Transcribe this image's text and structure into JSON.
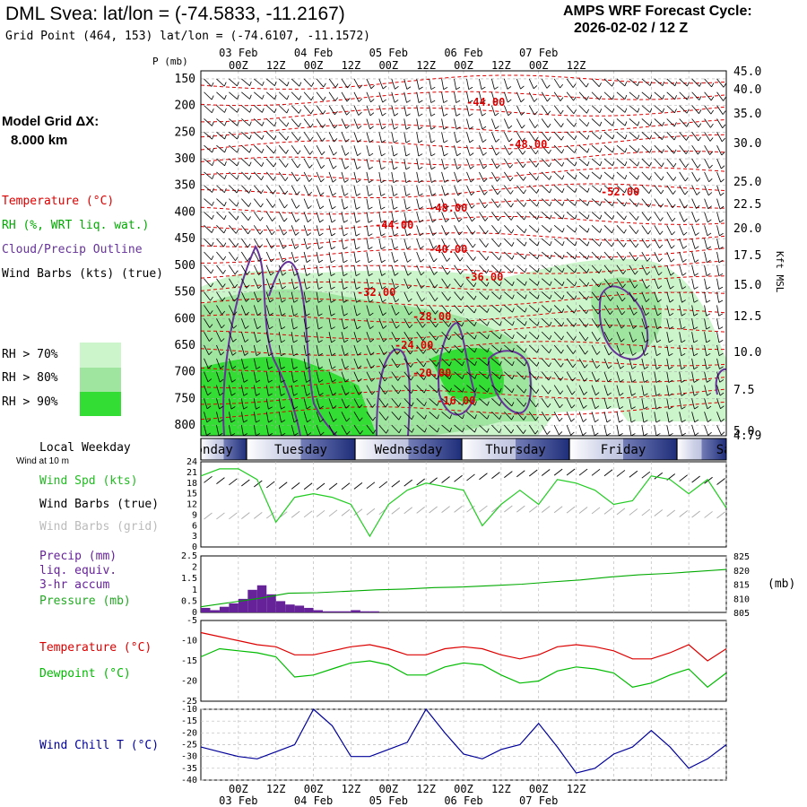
{
  "header": {
    "title": "DML Svea:  lat/lon = (-74.5833, -11.2167)",
    "grid_point": "Grid Point (464, 153) lat/lon = (-74.6107, -11.1572)",
    "forecast_label": "AMPS WRF Forecast Cycle:",
    "forecast_cycle": "2026-02-02 / 12  Z"
  },
  "left_labels": {
    "model_grid": "Model Grid ΔX:",
    "model_dx": "8.000 km",
    "temperature": "Temperature (°C)",
    "rh": "RH (%, WRT liq. wat.)",
    "cloud": "Cloud/Precip Outline",
    "wind_barbs": "Wind Barbs (kts) (true)",
    "rh70": "RH > 70%",
    "rh80": "RH > 80%",
    "rh90": "RH > 90%",
    "local_weekday": "Local Weekday",
    "wind_10m": "Wind at 10 m",
    "wind_spd": "Wind Spd (kts)",
    "wind_barbs_true": "Wind Barbs (true)",
    "wind_barbs_grid": "Wind Barbs (grid)",
    "precip": "Precip (mm)",
    "liq_equiv": "liq. equiv.",
    "accum": "3-hr accum",
    "pressure": "Pressure (mb)",
    "temperature2": "Temperature (°C)",
    "dewpoint": "Dewpoint (°C)",
    "wind_chill": "Wind Chill T (°C)",
    "p_mb": "P (mb)",
    "kft_msl": "Kft MSL",
    "pressure_unit": "(mb)"
  },
  "colors": {
    "temperature": "#dd0000",
    "rh": "#00aa00",
    "cloud": "#663399",
    "dewpoint": "#00bb00",
    "wind_spd": "#22cc22",
    "wind_chill": "#000099",
    "rh70": "#ccf5cc",
    "rh80": "#9fe59f",
    "rh90": "#33dd33",
    "precip": "#662299"
  },
  "chart_data": [
    {
      "type": "heatmap",
      "panel": "cross-section",
      "time_hours": [
        0,
        168
      ],
      "ylim_mb": [
        820,
        135
      ],
      "pressure_ticks": [
        150,
        200,
        250,
        300,
        350,
        400,
        450,
        500,
        550,
        600,
        650,
        700,
        750,
        800
      ],
      "height_ticks_kft": [
        "45.0",
        "40.0",
        "35.0",
        "30.0",
        "25.0",
        "22.5",
        "20.0",
        "17.5",
        "15.0",
        "12.5",
        "10.0",
        "7.5",
        "5.0",
        "4.79"
      ],
      "top_time_labels": [
        "00Z",
        "12Z",
        "00Z",
        "12Z",
        "00Z",
        "12Z",
        "00Z",
        "12Z",
        "00Z",
        "12Z"
      ],
      "date_labels": [
        "03 Feb",
        "04 Feb",
        "05 Feb",
        "06 Feb",
        "07 Feb"
      ],
      "temperature_labels": [
        "-44.00",
        "-48.00",
        "-52.00",
        "-48.00",
        "-44.00",
        "-40.00",
        "-36.00",
        "-32.00",
        "-28.00",
        "-24.00",
        "-20.00",
        "-16.00"
      ]
    },
    {
      "type": "table",
      "panel": "weekday-bar",
      "days": [
        "Monday",
        "Tuesday",
        "Wednesday",
        "Thursday",
        "Friday",
        "Saturday"
      ]
    },
    {
      "type": "line",
      "panel": "wind",
      "ylim": [
        0,
        24
      ],
      "yticks": [
        0,
        3,
        6,
        9,
        12,
        15,
        18,
        21,
        24
      ],
      "x_hours": [
        0,
        6,
        12,
        18,
        24,
        30,
        36,
        42,
        48,
        54,
        60,
        66,
        72,
        78,
        84,
        90,
        96,
        102,
        108,
        114,
        120,
        126,
        132,
        138,
        144,
        150,
        156,
        162,
        168
      ],
      "wind_speed_kts": [
        20,
        22,
        22,
        19,
        7,
        14,
        15,
        14,
        12,
        3,
        12,
        16,
        18,
        17,
        16,
        6,
        12,
        16,
        12,
        19,
        18,
        16,
        12,
        13,
        20,
        19,
        15,
        19,
        11
      ]
    },
    {
      "type": "bar",
      "panel": "precip",
      "ylim": [
        0,
        2.5
      ],
      "yticks": [
        0,
        0.5,
        1,
        1.5,
        2,
        2.5
      ],
      "x_hours": [
        0,
        3,
        6,
        9,
        12,
        15,
        18,
        21,
        24,
        27,
        30,
        33,
        36,
        39,
        42,
        45,
        48,
        51,
        54
      ],
      "precip_mm": [
        0.2,
        0.1,
        0.25,
        0.4,
        0.6,
        1.0,
        1.2,
        0.8,
        0.5,
        0.35,
        0.3,
        0.2,
        0.1,
        0.05,
        0.05,
        0.05,
        0.1,
        0.05,
        0.05
      ],
      "pressure_ylim": [
        805,
        825
      ],
      "pressure_ticks": [
        805,
        810,
        815,
        820,
        825
      ],
      "pressure_mb": [
        807,
        808.5,
        810,
        811.8,
        812,
        812.5,
        813,
        813.3,
        813.8,
        814,
        814.5,
        815,
        815.8,
        816.5,
        817.5,
        818.3,
        818.8,
        819.5,
        820.2
      ]
    },
    {
      "type": "line",
      "panel": "temperature",
      "ylim": [
        -25,
        -5
      ],
      "yticks": [
        -5,
        -10,
        -15,
        -20,
        -25
      ],
      "x_hours": [
        0,
        6,
        12,
        18,
        24,
        30,
        36,
        42,
        48,
        54,
        60,
        66,
        72,
        78,
        84,
        90,
        96,
        102,
        108,
        114,
        120,
        126,
        132,
        138,
        144,
        150,
        156,
        162,
        168
      ],
      "temperature_c": [
        -8,
        -9,
        -10,
        -11,
        -11.5,
        -13.5,
        -13.5,
        -12.5,
        -11.5,
        -11,
        -12,
        -13.5,
        -13.5,
        -12,
        -11.5,
        -12,
        -13.5,
        -14.5,
        -13.5,
        -11.5,
        -11,
        -11.5,
        -12.5,
        -14.5,
        -14.5,
        -13,
        -11,
        -15,
        -12
      ],
      "dewpoint_c": [
        -14,
        -12,
        -12.5,
        -13,
        -14,
        -19,
        -18.5,
        -17,
        -15.5,
        -15,
        -16,
        -18.5,
        -18.5,
        -16.5,
        -15.5,
        -16,
        -18.5,
        -20.5,
        -20,
        -17.5,
        -16.5,
        -17,
        -18,
        -21.5,
        -20.5,
        -18.5,
        -17,
        -21.5,
        -18
      ]
    },
    {
      "type": "line",
      "panel": "wind-chill",
      "ylim": [
        -40,
        -10
      ],
      "yticks": [
        -10,
        -15,
        -20,
        -25,
        -30,
        -35,
        -40
      ],
      "x_hours": [
        0,
        6,
        12,
        18,
        24,
        30,
        36,
        42,
        48,
        54,
        60,
        66,
        72,
        78,
        84,
        90,
        96,
        102,
        108,
        114,
        120,
        126,
        132,
        138,
        144,
        150,
        156,
        162,
        168
      ],
      "wind_chill_c": [
        -26,
        -28,
        -30,
        -31,
        -28,
        -25,
        -10,
        -17,
        -30,
        -30,
        -27,
        -24,
        -10,
        -20,
        -29,
        -31,
        -27,
        -25,
        -16,
        -26,
        -37,
        -35,
        -29,
        -26,
        -19,
        -26,
        -35,
        -31,
        -25
      ],
      "bottom_time_labels": [
        "00Z",
        "12Z",
        "00Z",
        "12Z",
        "00Z",
        "12Z",
        "00Z",
        "12Z",
        "00Z",
        "12Z"
      ],
      "date_labels": [
        "03 Feb",
        "04 Feb",
        "05 Feb",
        "06 Feb",
        "07 Feb"
      ]
    }
  ]
}
